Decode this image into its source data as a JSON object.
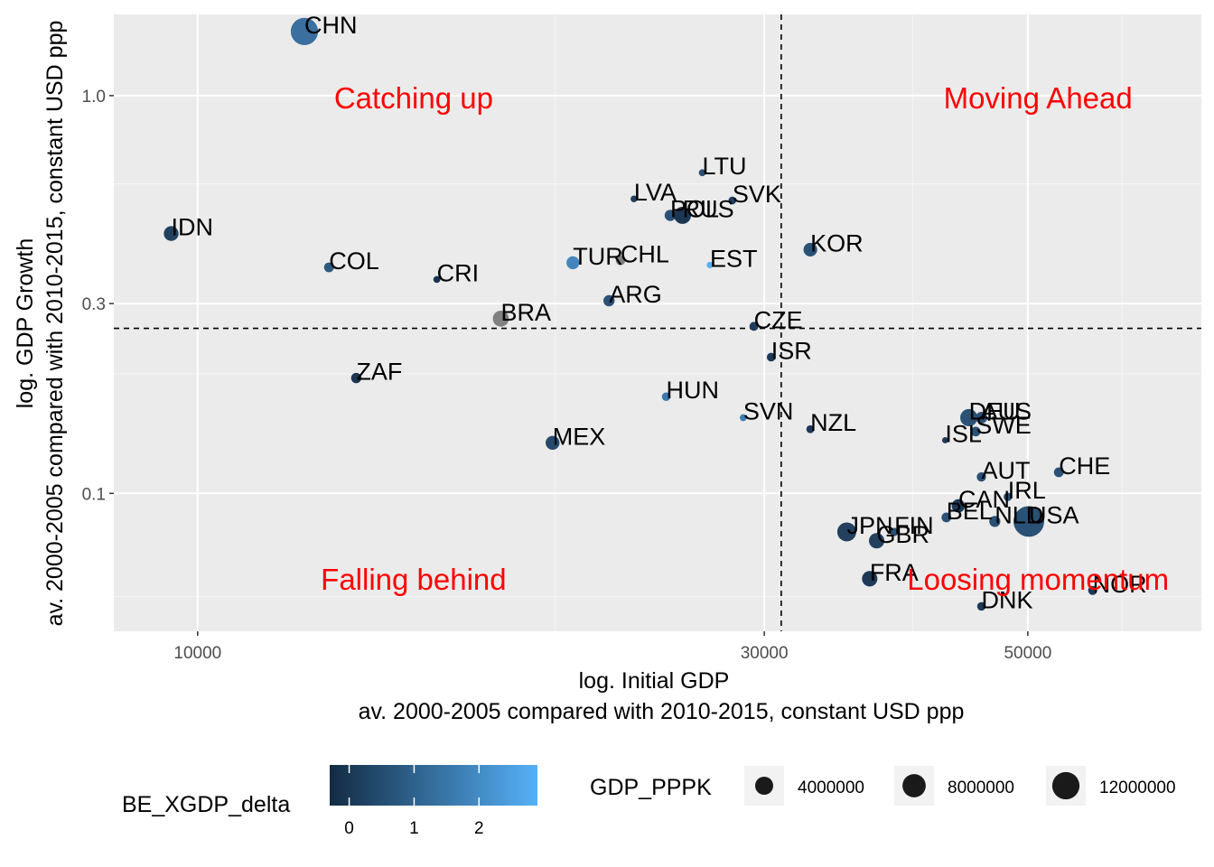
{
  "chart_data": {
    "type": "scatter",
    "xlabel": "log. Initial GDP",
    "xlabel_sub": "av. 2000-2005 compared with 2010-2015, constant USD ppp",
    "ylabel": "log. GDP Growth",
    "ylabel_sub": "av. 2000-2005 compared with 2010-2015, constant USD ppp",
    "x_scale": "log",
    "y_scale": "log",
    "xlim": [
      8500,
      70000
    ],
    "ylim": [
      0.045,
      1.6
    ],
    "x_ticks": [
      {
        "value": 10000,
        "label": "10000"
      },
      {
        "value": 30000,
        "label": "30000"
      },
      {
        "value": 50000,
        "label": "50000"
      }
    ],
    "y_ticks": [
      {
        "value": 0.1,
        "label": "0.1"
      },
      {
        "value": 0.3,
        "label": "0.3"
      },
      {
        "value": 1.0,
        "label": "1.0"
      }
    ],
    "x_minor": [
      20000,
      40000,
      60000
    ],
    "y_minor": [
      0.055,
      0.2,
      0.6
    ],
    "ref_lines": {
      "x": 31000,
      "y": 0.26
    },
    "quadrant_labels": [
      {
        "text": "Catching up",
        "x": 15200,
        "y": 0.99
      },
      {
        "text": "Moving Ahead",
        "x": 51000,
        "y": 0.99
      },
      {
        "text": "Falling behind",
        "x": 15200,
        "y": 0.061
      },
      {
        "text": "Loosing momentum",
        "x": 51000,
        "y": 0.061
      }
    ],
    "legend_position": "bottom",
    "color_legend": {
      "title": "BE_XGDP_delta",
      "low": "#132b43",
      "high": "#56b1f7",
      "ticks": [
        0,
        1,
        2
      ],
      "range": [
        -0.3,
        2.9
      ]
    },
    "size_legend": {
      "title": "GDP_PPPK",
      "values": [
        4000000,
        8000000,
        12000000
      ],
      "labels": [
        "4000000",
        "8000000",
        "12000000"
      ]
    },
    "points": [
      {
        "label": "CHN",
        "x": 12300,
        "y": 1.45,
        "size": 12000000,
        "color": "#3a6f9f"
      },
      {
        "label": "IDN",
        "x": 9500,
        "y": 0.45,
        "size": 2200000,
        "color": "#23415f"
      },
      {
        "label": "COL",
        "x": 12900,
        "y": 0.37,
        "size": 500000,
        "color": "#2f5a80"
      },
      {
        "label": "CRI",
        "x": 15900,
        "y": 0.345,
        "size": 60000,
        "color": "#1a3350"
      },
      {
        "label": "BRA",
        "x": 18000,
        "y": 0.275,
        "size": 2800000,
        "color": "#808080"
      },
      {
        "label": "ZAF",
        "x": 13600,
        "y": 0.195,
        "size": 600000,
        "color": "#1c3550"
      },
      {
        "label": "MEX",
        "x": 19900,
        "y": 0.134,
        "size": 1800000,
        "color": "#264a6c"
      },
      {
        "label": "LVA",
        "x": 23300,
        "y": 0.55,
        "size": 40000,
        "color": "#1f3d5a"
      },
      {
        "label": "POL",
        "x": 25000,
        "y": 0.5,
        "size": 850000,
        "color": "#2a5278"
      },
      {
        "label": "RUS",
        "x": 25600,
        "y": 0.5,
        "size": 3400000,
        "color": "#1c3753"
      },
      {
        "label": "LTU",
        "x": 26600,
        "y": 0.64,
        "size": 60000,
        "color": "#2a4f72"
      },
      {
        "label": "SVK",
        "x": 28200,
        "y": 0.545,
        "size": 140000,
        "color": "#203f5e"
      },
      {
        "label": "TUR",
        "x": 20700,
        "y": 0.38,
        "size": 1400000,
        "color": "#4585be"
      },
      {
        "label": "CHL",
        "x": 22700,
        "y": 0.385,
        "size": 380000,
        "color": "#808080"
      },
      {
        "label": "EST",
        "x": 27000,
        "y": 0.375,
        "size": 30000,
        "color": "#56b1f7"
      },
      {
        "label": "ARG",
        "x": 22200,
        "y": 0.305,
        "size": 850000,
        "color": "#2a5176"
      },
      {
        "label": "CZE",
        "x": 29400,
        "y": 0.263,
        "size": 300000,
        "color": "#1f3d5b"
      },
      {
        "label": "ISR",
        "x": 30400,
        "y": 0.22,
        "size": 270000,
        "color": "#1d3a58"
      },
      {
        "label": "KOR",
        "x": 32800,
        "y": 0.41,
        "size": 1700000,
        "color": "#2a5277"
      },
      {
        "label": "HUN",
        "x": 24800,
        "y": 0.175,
        "size": 240000,
        "color": "#3c78ad"
      },
      {
        "label": "SVN",
        "x": 28800,
        "y": 0.155,
        "size": 60000,
        "color": "#3f7db4"
      },
      {
        "label": "NZL",
        "x": 32800,
        "y": 0.145,
        "size": 160000,
        "color": "#1d3957"
      },
      {
        "label": "DEU",
        "x": 44600,
        "y": 0.155,
        "size": 3500000,
        "color": "#2a5176"
      },
      {
        "label": "AUS",
        "x": 45700,
        "y": 0.155,
        "size": 1000000,
        "color": "#2a5176"
      },
      {
        "label": "ISL",
        "x": 42600,
        "y": 0.136,
        "size": 14000,
        "color": "#1d3957"
      },
      {
        "label": "SWE",
        "x": 45200,
        "y": 0.143,
        "size": 440000,
        "color": "#2a5176"
      },
      {
        "label": "AUT",
        "x": 45700,
        "y": 0.11,
        "size": 380000,
        "color": "#2a5176"
      },
      {
        "label": "CHE",
        "x": 53100,
        "y": 0.113,
        "size": 480000,
        "color": "#2a5176"
      },
      {
        "label": "IRL",
        "x": 48100,
        "y": 0.098,
        "size": 230000,
        "color": "#2a5176"
      },
      {
        "label": "CAN",
        "x": 43700,
        "y": 0.093,
        "size": 1550000,
        "color": "#1d3957"
      },
      {
        "label": "BEL",
        "x": 42700,
        "y": 0.087,
        "size": 470000,
        "color": "#2a5176"
      },
      {
        "label": "NLD",
        "x": 46900,
        "y": 0.085,
        "size": 800000,
        "color": "#2a5176"
      },
      {
        "label": "USA",
        "x": 50100,
        "y": 0.085,
        "size": 16000000,
        "color": "#2a5176"
      },
      {
        "label": "JPN",
        "x": 35200,
        "y": 0.08,
        "size": 4600000,
        "color": "#23415f"
      },
      {
        "label": "FIN",
        "x": 38600,
        "y": 0.08,
        "size": 220000,
        "color": "#2a5176"
      },
      {
        "label": "GBR",
        "x": 37300,
        "y": 0.076,
        "size": 2500000,
        "color": "#23415f"
      },
      {
        "label": "FRA",
        "x": 36800,
        "y": 0.061,
        "size": 2500000,
        "color": "#1d3957"
      },
      {
        "label": "DNK",
        "x": 45700,
        "y": 0.052,
        "size": 260000,
        "color": "#1d3957"
      },
      {
        "label": "NOR",
        "x": 56700,
        "y": 0.057,
        "size": 330000,
        "color": "#1d3957"
      }
    ]
  }
}
